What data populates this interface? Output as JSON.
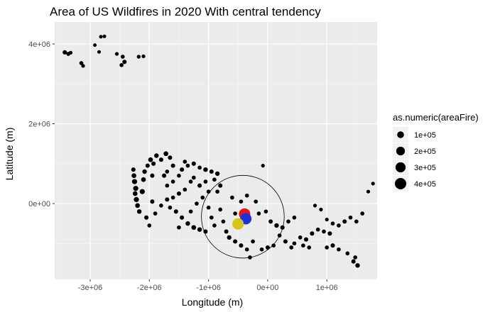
{
  "chart_data": {
    "type": "scatter",
    "title": "Area of US Wildfires in 2020 With central tendency",
    "xlabel": "Longitude (m)",
    "ylabel": "Latitude (m)",
    "xlim": [
      -3600000,
      1850000
    ],
    "ylim": [
      -1900000,
      4550000
    ],
    "x_ticks": [
      {
        "value": -3000000,
        "label": "-3e+06"
      },
      {
        "value": -2000000,
        "label": "-2e+06"
      },
      {
        "value": -1000000,
        "label": "-1e+06"
      },
      {
        "value": 0,
        "label": "0e+00"
      },
      {
        "value": 1000000,
        "label": "1e+06"
      }
    ],
    "y_ticks": [
      {
        "value": 0,
        "label": "0e+00"
      },
      {
        "value": 2000000,
        "label": "2e+06"
      },
      {
        "value": 4000000,
        "label": "4e+06"
      }
    ],
    "grid": true,
    "legend": {
      "title": "as.numeric(areaFire)",
      "placement": "right",
      "entries": [
        {
          "label": "1e+05",
          "size_value": 100000
        },
        {
          "label": "2e+05",
          "size_value": 200000
        },
        {
          "label": "3e+05",
          "size_value": 300000
        },
        {
          "label": "4e+05",
          "size_value": 400000
        }
      ]
    },
    "series": [
      {
        "role": "fires",
        "color": "#000000",
        "points": [
          [
            -3430000,
            3790000,
            20000
          ],
          [
            -3370000,
            3750000,
            15000
          ],
          [
            -3330000,
            3780000,
            10000
          ],
          [
            -3150000,
            3520000,
            15000
          ],
          [
            -3120000,
            3450000,
            10000
          ],
          [
            -2820000,
            4180000,
            8000
          ],
          [
            -2760000,
            4190000,
            8000
          ],
          [
            -2920000,
            3970000,
            8000
          ],
          [
            -2850000,
            3800000,
            8000
          ],
          [
            -2550000,
            3750000,
            10000
          ],
          [
            -2450000,
            3680000,
            15000
          ],
          [
            -2420000,
            3550000,
            20000
          ],
          [
            -2470000,
            3470000,
            15000
          ],
          [
            -2180000,
            3680000,
            12000
          ],
          [
            -2100000,
            3690000,
            10000
          ],
          [
            -2270000,
            850000,
            20000
          ],
          [
            -2260000,
            700000,
            30000
          ],
          [
            -2250000,
            550000,
            40000
          ],
          [
            -2230000,
            380000,
            40000
          ],
          [
            -2240000,
            250000,
            30000
          ],
          [
            -2220000,
            100000,
            40000
          ],
          [
            -2200000,
            -50000,
            30000
          ],
          [
            -2170000,
            -200000,
            25000
          ],
          [
            -2120000,
            300000,
            40000
          ],
          [
            -2100000,
            600000,
            30000
          ],
          [
            -2080000,
            800000,
            25000
          ],
          [
            -2050000,
            -350000,
            20000
          ],
          [
            -2000000,
            -550000,
            15000
          ],
          [
            -2030000,
            950000,
            20000
          ],
          [
            -1980000,
            1100000,
            30000
          ],
          [
            -1930000,
            1000000,
            20000
          ],
          [
            -1950000,
            700000,
            20000
          ],
          [
            -1950000,
            50000,
            20000
          ],
          [
            -1900000,
            -250000,
            15000
          ],
          [
            -1880000,
            1200000,
            25000
          ],
          [
            -1800000,
            1100000,
            20000
          ],
          [
            -1720000,
            1250000,
            30000
          ],
          [
            -1650000,
            1150000,
            20000
          ],
          [
            -1600000,
            950000,
            20000
          ],
          [
            -1700000,
            800000,
            15000
          ],
          [
            -1750000,
            700000,
            20000
          ],
          [
            -1700000,
            450000,
            15000
          ],
          [
            -1600000,
            550000,
            15000
          ],
          [
            -1500000,
            700000,
            15000
          ],
          [
            -1450000,
            850000,
            20000
          ],
          [
            -1350000,
            950000,
            15000
          ],
          [
            -1250000,
            1000000,
            20000
          ],
          [
            -1150000,
            900000,
            15000
          ],
          [
            -1050000,
            850000,
            25000
          ],
          [
            -950000,
            800000,
            20000
          ],
          [
            -850000,
            750000,
            25000
          ],
          [
            -900000,
            600000,
            15000
          ],
          [
            -800000,
            450000,
            20000
          ],
          [
            -850000,
            300000,
            15000
          ],
          [
            -1000000,
            300000,
            15000
          ],
          [
            -1150000,
            450000,
            20000
          ],
          [
            -1300000,
            550000,
            15000
          ],
          [
            -1400000,
            350000,
            15000
          ],
          [
            -1500000,
            250000,
            20000
          ],
          [
            -1600000,
            150000,
            15000
          ],
          [
            -1700000,
            100000,
            20000
          ],
          [
            -1800000,
            -50000,
            15000
          ],
          [
            -1650000,
            -100000,
            15000
          ],
          [
            -1550000,
            -200000,
            20000
          ],
          [
            -1450000,
            -350000,
            20000
          ],
          [
            -1350000,
            -500000,
            25000
          ],
          [
            -1250000,
            -600000,
            30000
          ],
          [
            -1150000,
            -650000,
            25000
          ],
          [
            -1050000,
            -700000,
            20000
          ],
          [
            -1500000,
            -600000,
            15000
          ],
          [
            -1300000,
            -200000,
            15000
          ],
          [
            -1200000,
            0,
            15000
          ],
          [
            -1100000,
            150000,
            15000
          ],
          [
            -1000000,
            -100000,
            15000
          ],
          [
            -950000,
            -350000,
            15000
          ],
          [
            -800000,
            -150000,
            15000
          ],
          [
            -750000,
            -450000,
            15000
          ],
          [
            -900000,
            -550000,
            15000
          ],
          [
            -700000,
            -700000,
            20000
          ],
          [
            -650000,
            -850000,
            25000
          ],
          [
            -550000,
            -950000,
            20000
          ],
          [
            -450000,
            -1050000,
            20000
          ],
          [
            -350000,
            -1150000,
            15000
          ],
          [
            -300000,
            -1350000,
            15000
          ],
          [
            -250000,
            -950000,
            15000
          ],
          [
            -600000,
            150000,
            15000
          ],
          [
            -550000,
            -250000,
            15000
          ],
          [
            -450000,
            50000,
            15000
          ],
          [
            -350000,
            200000,
            15000
          ],
          [
            -200000,
            50000,
            15000
          ],
          [
            -150000,
            -250000,
            15000
          ],
          [
            -80000,
            950000,
            10000
          ],
          [
            -30000,
            -200000,
            15000
          ],
          [
            50000,
            -450000,
            20000
          ],
          [
            150000,
            -550000,
            25000
          ],
          [
            250000,
            -600000,
            20000
          ],
          [
            350000,
            -450000,
            15000
          ],
          [
            450000,
            -350000,
            15000
          ],
          [
            200000,
            -800000,
            15000
          ],
          [
            100000,
            -1050000,
            15000
          ],
          [
            0,
            -1100000,
            20000
          ],
          [
            -100000,
            -1150000,
            15000
          ],
          [
            300000,
            -950000,
            20000
          ],
          [
            450000,
            -1000000,
            15000
          ],
          [
            550000,
            -850000,
            15000
          ],
          [
            650000,
            -900000,
            20000
          ],
          [
            750000,
            -750000,
            20000
          ],
          [
            850000,
            -650000,
            15000
          ],
          [
            950000,
            -700000,
            15000
          ],
          [
            1050000,
            -750000,
            20000
          ],
          [
            1100000,
            -500000,
            15000
          ],
          [
            1200000,
            -550000,
            15000
          ],
          [
            1300000,
            -450000,
            20000
          ],
          [
            1400000,
            -350000,
            15000
          ],
          [
            1500000,
            -450000,
            15000
          ],
          [
            1600000,
            -250000,
            15000
          ],
          [
            1700000,
            300000,
            10000
          ],
          [
            1780000,
            500000,
            10000
          ],
          [
            1000000,
            -400000,
            10000
          ],
          [
            900000,
            -150000,
            10000
          ],
          [
            800000,
            -50000,
            10000
          ],
          [
            1100000,
            -1050000,
            20000
          ],
          [
            1000000,
            -1100000,
            15000
          ],
          [
            1200000,
            -1150000,
            15000
          ],
          [
            1350000,
            -1250000,
            15000
          ],
          [
            1450000,
            -1450000,
            20000
          ],
          [
            1520000,
            -1550000,
            25000
          ],
          [
            1480000,
            -1350000,
            15000
          ],
          [
            600000,
            -1050000,
            15000
          ],
          [
            700000,
            -1100000,
            15000
          ],
          [
            400000,
            -1100000,
            15000
          ],
          [
            -1400000,
            1050000,
            15000
          ],
          [
            -1250000,
            650000,
            15000
          ],
          [
            -1050000,
            550000,
            15000
          ]
        ]
      },
      {
        "role": "central-tendency",
        "name": "red",
        "color": "#e31a1c",
        "points": [
          [
            -390000,
            -260000,
            400000
          ]
        ]
      },
      {
        "role": "central-tendency",
        "name": "blue",
        "color": "#1f31d6",
        "points": [
          [
            -370000,
            -380000,
            400000
          ]
        ]
      },
      {
        "role": "central-tendency",
        "name": "yellow",
        "color": "#d4c51a",
        "points": [
          [
            -500000,
            -510000,
            400000
          ]
        ]
      }
    ],
    "annotation_circle": {
      "center": [
        -420000,
        -330000
      ],
      "radius_x": 700000
    }
  }
}
